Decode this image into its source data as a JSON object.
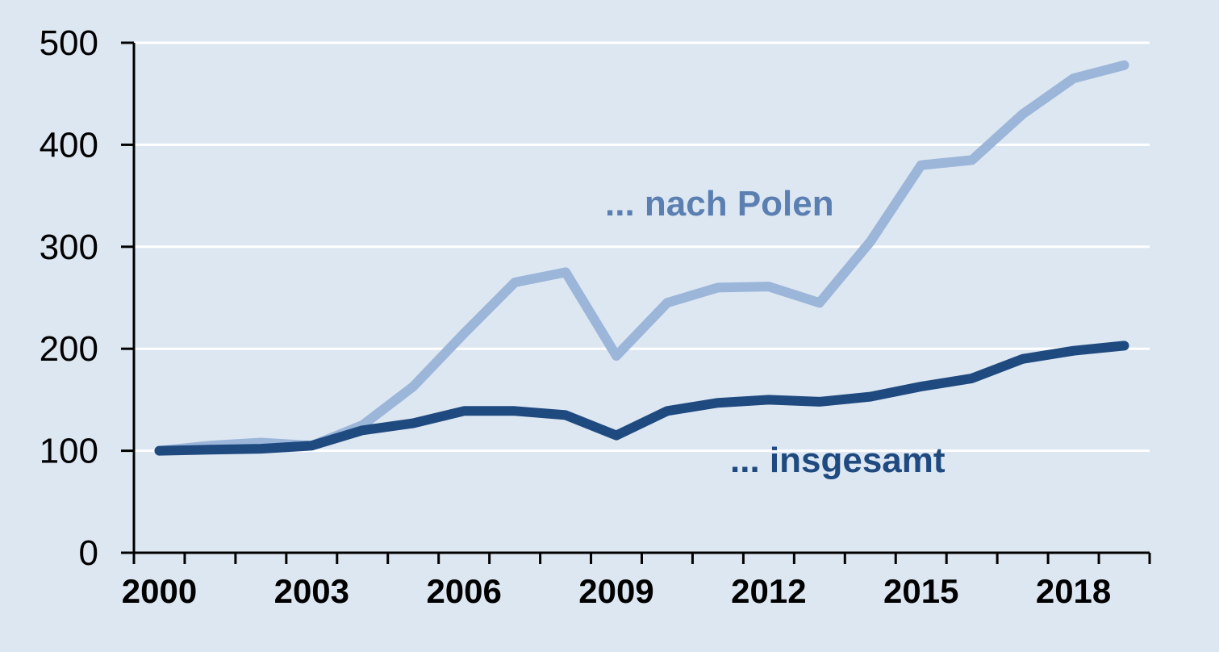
{
  "chart_data": {
    "type": "line",
    "title": "",
    "xlabel": "",
    "ylabel": "",
    "ylim": [
      0,
      500
    ],
    "yticks": [
      0,
      100,
      200,
      300,
      400,
      500
    ],
    "xticks": [
      2000,
      2003,
      2006,
      2009,
      2012,
      2015,
      2018
    ],
    "grid": true,
    "x": [
      2000,
      2001,
      2002,
      2003,
      2004,
      2005,
      2006,
      2007,
      2008,
      2009,
      2010,
      2011,
      2012,
      2013,
      2014,
      2015,
      2016,
      2017,
      2018,
      2019
    ],
    "series": [
      {
        "name": "... nach Polen",
        "color": "#9bb6d9",
        "label_color": "#5b7fb1",
        "values": [
          100,
          105,
          108,
          105,
          125,
          163,
          215,
          265,
          275,
          193,
          245,
          260,
          261,
          245,
          305,
          380,
          385,
          430,
          465,
          478
        ]
      },
      {
        "name": "... insgesamt",
        "color": "#1f4a80",
        "label_color": "#1f4a80",
        "values": [
          100,
          101,
          102,
          105,
          120,
          127,
          139,
          139,
          135,
          115,
          139,
          147,
          150,
          148,
          153,
          163,
          171,
          190,
          198,
          203
        ]
      }
    ]
  }
}
